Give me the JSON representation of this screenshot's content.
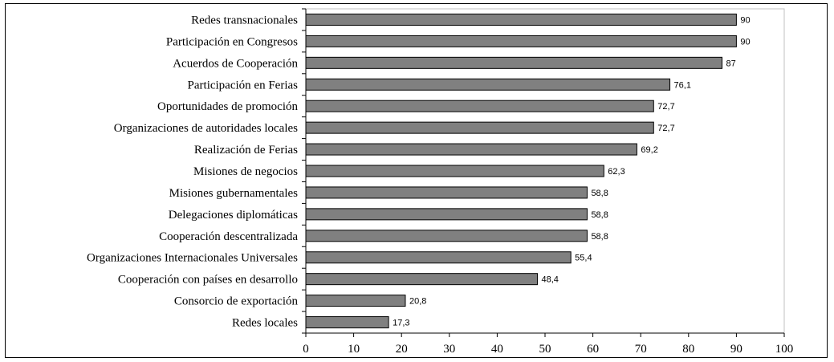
{
  "chart_data": {
    "type": "bar",
    "orientation": "horizontal",
    "categories": [
      "Redes transnacionales",
      "Participación en Congresos",
      "Acuerdos de Cooperación",
      "Participación en Ferias",
      "Oportunidades de promoción",
      "Organizaciones de autoridades locales",
      "Realización de Ferias",
      "Misiones de negocios",
      "Misiones gubernamentales",
      "Delegaciones diplomáticas",
      "Cooperación descentralizada",
      "Organizaciones Internacionales Universales",
      "Cooperación con países en desarrollo",
      "Consorcio de exportación",
      "Redes locales"
    ],
    "values": [
      90,
      90,
      87,
      76.1,
      72.7,
      72.7,
      69.2,
      62.3,
      58.8,
      58.8,
      58.8,
      55.4,
      48.4,
      20.8,
      17.3
    ],
    "value_labels": [
      "90",
      "90",
      "87",
      "76,1",
      "72,7",
      "72,7",
      "69,2",
      "62,3",
      "58,8",
      "58,8",
      "58,8",
      "55,4",
      "48,4",
      "20,8",
      "17,3"
    ],
    "xticks": [
      0,
      10,
      20,
      30,
      40,
      50,
      60,
      70,
      80,
      90,
      100
    ],
    "xtick_labels": [
      "0",
      "10",
      "20",
      "30",
      "40",
      "50",
      "60",
      "70",
      "80",
      "90",
      "100"
    ],
    "xlim": [
      0,
      100
    ],
    "title": "",
    "xlabel": "",
    "ylabel": "",
    "grid": false,
    "legend": "none",
    "bar_color": "#808080",
    "bar_edge_color": "#000000"
  }
}
